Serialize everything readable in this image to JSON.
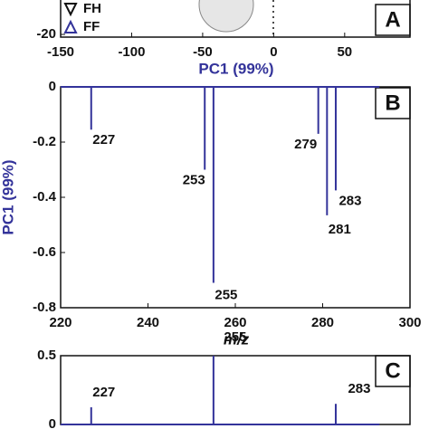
{
  "chart_data": [
    {
      "type": "scatter",
      "panel": "A",
      "xlabel": "PC1 (99%)",
      "xlim": [
        -150,
        96
      ],
      "xticks": [
        -150,
        -100,
        -50,
        0,
        50
      ],
      "ylim": [
        -20.5,
        0
      ],
      "yticks": [
        -20
      ],
      "series": [
        {
          "name": "FH",
          "color": "#111111",
          "marker": "triangle-down"
        },
        {
          "name": "FF",
          "color": "#33339a",
          "marker": "triangle-up"
        }
      ]
    },
    {
      "type": "stem",
      "panel": "B",
      "xlabel": "m/z",
      "ylabel": "PC1 (99%)",
      "xlim": [
        220,
        300
      ],
      "xticks": [
        220,
        240,
        260,
        280,
        300
      ],
      "ylim": [
        -0.8,
        0
      ],
      "yticks": [
        0,
        -0.2,
        -0.4,
        -0.6,
        -0.8
      ],
      "color": "#33339a",
      "x": [
        227,
        253,
        255,
        279,
        281,
        283
      ],
      "values": [
        -0.155,
        -0.3,
        -0.71,
        -0.17,
        -0.465,
        -0.375
      ]
    },
    {
      "type": "stem",
      "panel": "C",
      "xlim": [
        220,
        300
      ],
      "ylim": [
        0,
        0.5
      ],
      "yticks": [
        0,
        0.5
      ],
      "color": "#33339a",
      "x": [
        227,
        255,
        283
      ],
      "values": [
        0.125,
        0.5,
        0.15
      ]
    }
  ]
}
